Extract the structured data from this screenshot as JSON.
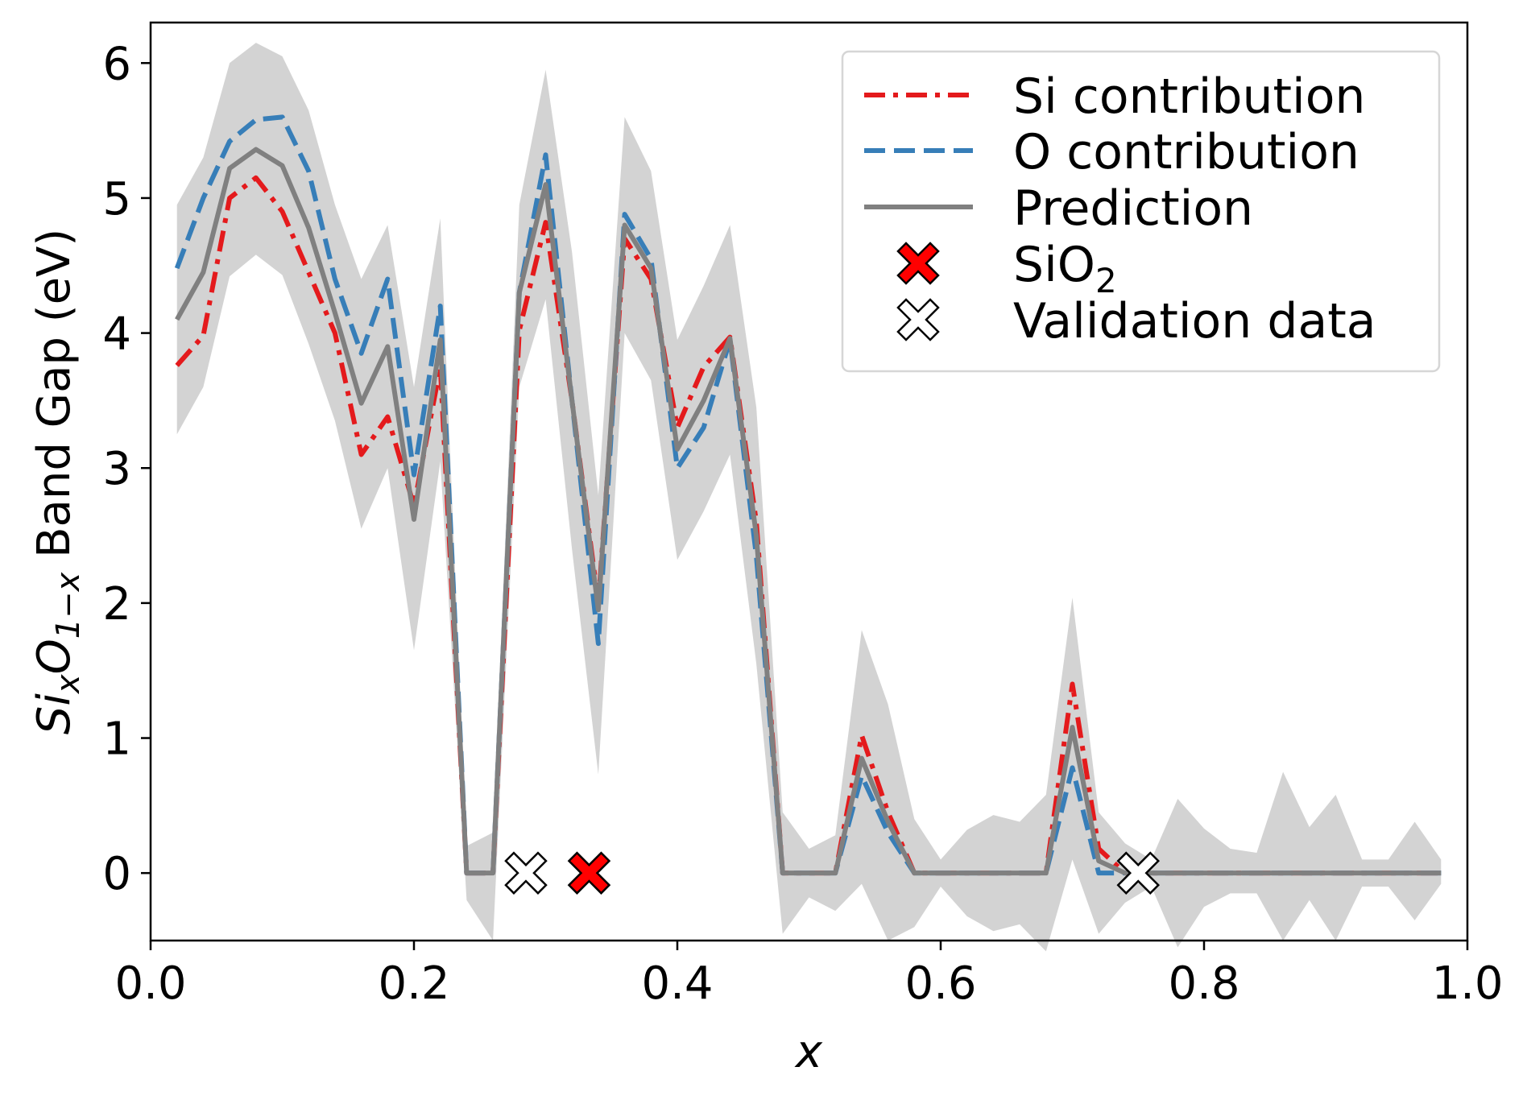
{
  "chart_data": {
    "type": "line",
    "xlabel": "x",
    "ylabel_parts": {
      "a": "Si",
      "a_sub": "x",
      "b": "O",
      "b_sub": "1−x",
      "c": " Band Gap (eV)"
    },
    "xlim": [
      0.0,
      1.0
    ],
    "ylim": [
      -0.5,
      6.3
    ],
    "xticks": [
      "0.0",
      "0.2",
      "0.4",
      "0.6",
      "0.8",
      "1.0"
    ],
    "xtick_values": [
      0.0,
      0.2,
      0.4,
      0.6,
      0.8,
      1.0
    ],
    "yticks": [
      "0",
      "1",
      "2",
      "3",
      "4",
      "5",
      "6"
    ],
    "ytick_values": [
      0,
      1,
      2,
      3,
      4,
      5,
      6
    ],
    "grid": false,
    "legend_position": "top-right",
    "x": [
      0.02,
      0.04,
      0.06,
      0.08,
      0.1,
      0.12,
      0.14,
      0.16,
      0.18,
      0.2,
      0.22,
      0.24,
      0.26,
      0.28,
      0.3,
      0.32,
      0.34,
      0.36,
      0.38,
      0.4,
      0.42,
      0.44,
      0.46,
      0.48,
      0.5,
      0.52,
      0.54,
      0.56,
      0.58,
      0.6,
      0.62,
      0.64,
      0.66,
      0.68,
      0.7,
      0.72,
      0.74,
      0.76,
      0.78,
      0.8,
      0.82,
      0.84,
      0.86,
      0.88,
      0.9,
      0.92,
      0.94,
      0.96,
      0.98
    ],
    "series": [
      {
        "name": "Si contribution",
        "color": "#e41a1c",
        "dash": "dashdot",
        "values": [
          3.76,
          3.98,
          5.0,
          5.15,
          4.9,
          4.45,
          4.0,
          3.1,
          3.38,
          2.72,
          3.75,
          0.0,
          0.0,
          4.02,
          4.82,
          3.5,
          2.0,
          4.7,
          4.4,
          3.3,
          3.75,
          3.97,
          2.6,
          0.0,
          0.0,
          0.0,
          1.02,
          0.45,
          0.0,
          0.0,
          0.0,
          0.0,
          0.0,
          0.0,
          1.4,
          0.18,
          0.0,
          0.0,
          0.0,
          0.0,
          0.0,
          0.0,
          0.0,
          0.0,
          0.0,
          0.0,
          0.0,
          0.0,
          0.0
        ]
      },
      {
        "name": "O contribution",
        "color": "#377eb8",
        "dash": "dashed",
        "values": [
          4.48,
          5.0,
          5.42,
          5.58,
          5.6,
          5.2,
          4.4,
          3.85,
          4.4,
          2.95,
          4.2,
          0.0,
          0.0,
          4.3,
          5.32,
          3.5,
          1.7,
          4.88,
          4.55,
          3.0,
          3.3,
          3.95,
          2.35,
          0.0,
          0.0,
          0.0,
          0.72,
          0.3,
          0.0,
          0.0,
          0.0,
          0.0,
          0.0,
          0.0,
          0.78,
          0.0,
          0.0,
          0.0,
          0.0,
          0.0,
          0.0,
          0.0,
          0.0,
          0.0,
          0.0,
          0.0,
          0.0,
          0.0,
          0.0
        ]
      },
      {
        "name": "Prediction",
        "color": "#808080",
        "dash": "solid",
        "values": [
          4.1,
          4.45,
          5.22,
          5.36,
          5.24,
          4.78,
          4.15,
          3.48,
          3.9,
          2.62,
          3.95,
          0.0,
          0.0,
          4.3,
          5.1,
          3.5,
          1.95,
          4.8,
          4.48,
          3.14,
          3.5,
          3.96,
          2.5,
          0.0,
          0.0,
          0.0,
          0.85,
          0.38,
          0.0,
          0.0,
          0.0,
          0.0,
          0.0,
          0.0,
          1.08,
          0.09,
          0.0,
          0.0,
          0.0,
          0.0,
          0.0,
          0.0,
          0.0,
          0.0,
          0.0,
          0.0,
          0.0,
          0.0,
          0.0
        ]
      }
    ],
    "band": {
      "color": "#b8b8b8",
      "upper": [
        4.95,
        5.3,
        6.0,
        6.15,
        6.05,
        5.65,
        4.95,
        4.4,
        4.8,
        3.6,
        4.85,
        0.2,
        0.3,
        4.95,
        5.95,
        4.6,
        2.8,
        5.6,
        5.2,
        3.95,
        4.35,
        4.8,
        3.45,
        0.45,
        0.18,
        0.28,
        1.8,
        1.25,
        0.4,
        0.1,
        0.32,
        0.43,
        0.38,
        0.58,
        2.04,
        0.45,
        0.22,
        0.1,
        0.55,
        0.33,
        0.18,
        0.15,
        0.75,
        0.34,
        0.58,
        0.1,
        0.1,
        0.38,
        0.1
      ],
      "lower": [
        3.25,
        3.6,
        4.42,
        4.58,
        4.43,
        3.92,
        3.35,
        2.55,
        3.0,
        1.65,
        3.05,
        -0.2,
        -0.5,
        3.6,
        4.25,
        2.4,
        0.73,
        4.0,
        3.65,
        2.32,
        2.68,
        3.1,
        1.55,
        -0.45,
        -0.18,
        -0.28,
        -0.08,
        -0.5,
        -0.4,
        -0.1,
        -0.32,
        -0.43,
        -0.38,
        -0.58,
        0.1,
        -0.45,
        -0.22,
        -0.1,
        -0.55,
        -0.25,
        -0.15,
        -0.15,
        -0.5,
        -0.2,
        -0.5,
        -0.1,
        -0.1,
        -0.35,
        -0.08
      ]
    },
    "markers": [
      {
        "name": "SiO2",
        "x": 0.333,
        "y": 0.0,
        "fill": "#ff0000",
        "stroke": "#000000"
      },
      {
        "name": "Validation data",
        "x": 0.285,
        "y": 0.0,
        "fill": "#ffffff",
        "stroke": "#000000"
      },
      {
        "name": "Validation data",
        "x": 0.75,
        "y": 0.0,
        "fill": "#ffffff",
        "stroke": "#000000"
      }
    ],
    "legend": [
      {
        "label": "Si contribution",
        "kind": "line",
        "color": "#e41a1c",
        "dash": "dashdot"
      },
      {
        "label": "O contribution",
        "kind": "line",
        "color": "#377eb8",
        "dash": "dashed"
      },
      {
        "label": "Prediction",
        "kind": "line",
        "color": "#808080",
        "dash": "solid"
      },
      {
        "label": "SiO",
        "label_sub": "2",
        "kind": "marker",
        "fill": "#ff0000"
      },
      {
        "label": "Validation data",
        "kind": "marker",
        "fill": "#ffffff"
      }
    ]
  }
}
